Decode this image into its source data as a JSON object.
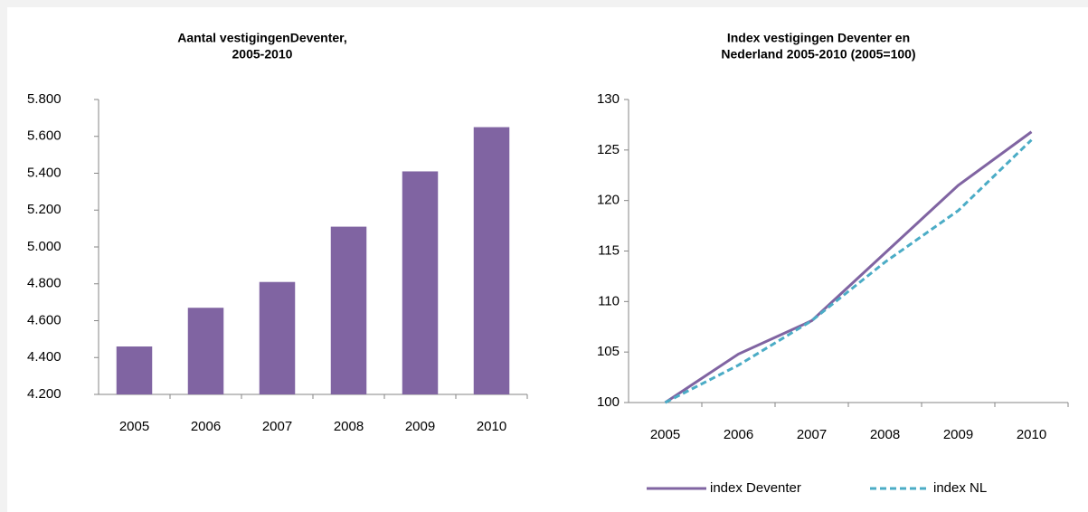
{
  "chart_data": [
    {
      "type": "bar",
      "title": [
        "Aantal vestigingenDeventer,",
        "2005-2010"
      ],
      "categories": [
        "2005",
        "2006",
        "2007",
        "2008",
        "2009",
        "2010"
      ],
      "values": [
        4460,
        4670,
        4810,
        5110,
        5410,
        5650
      ],
      "color": "#8064a2",
      "ylim": [
        4200,
        5800
      ],
      "yticks": [
        {
          "value": 4200,
          "label": "4.200"
        },
        {
          "value": 4400,
          "label": "4.400"
        },
        {
          "value": 4600,
          "label": "4.600"
        },
        {
          "value": 4800,
          "label": "4.800"
        },
        {
          "value": 5000,
          "label": "5.000"
        },
        {
          "value": 5200,
          "label": "5.200"
        },
        {
          "value": 5400,
          "label": "5.400"
        },
        {
          "value": 5600,
          "label": "5.600"
        },
        {
          "value": 5800,
          "label": "5.800"
        }
      ],
      "grid": false
    },
    {
      "type": "line",
      "title": [
        "Index vestigingen Deventer en",
        "Nederland 2005-2010 (2005=100)"
      ],
      "categories": [
        "2005",
        "2006",
        "2007",
        "2008",
        "2009",
        "2010"
      ],
      "series": [
        {
          "name": "index Deventer",
          "color": "#8064a2",
          "style": "solid",
          "values": [
            100,
            104.8,
            108.1,
            114.8,
            121.5,
            126.8
          ]
        },
        {
          "name": "index NL",
          "color": "#4bacc6",
          "style": "dashed",
          "values": [
            100,
            103.7,
            108.1,
            113.9,
            119.0,
            126.0
          ]
        }
      ],
      "ylim": [
        100,
        130
      ],
      "yticks": [
        100,
        105,
        110,
        115,
        120,
        125,
        130
      ],
      "grid": false,
      "legend": "bottom"
    }
  ]
}
